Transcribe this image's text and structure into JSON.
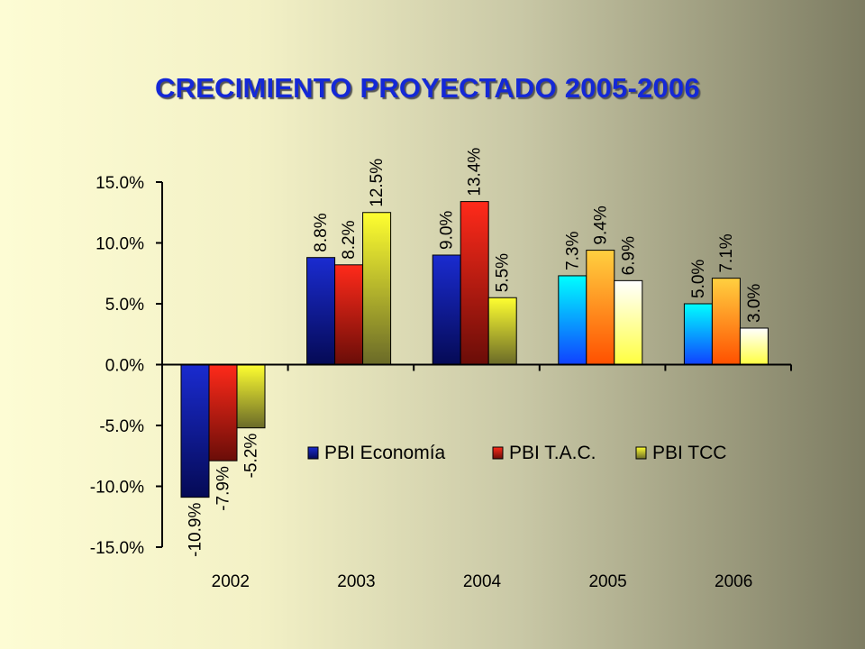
{
  "title": "CRECIMIENTO PROYECTADO 2005-2006",
  "chart_data": {
    "type": "bar",
    "categories": [
      "2002",
      "2003",
      "2004",
      "2005",
      "2006"
    ],
    "series": [
      {
        "name": "PBI Economía",
        "values": [
          -10.9,
          8.8,
          9.0,
          7.3,
          5.0
        ],
        "labels": [
          "-10.9%",
          "8.8%",
          "9.0%",
          "7.3%",
          "5.0%"
        ]
      },
      {
        "name": "PBI T.A.C.",
        "values": [
          -7.9,
          8.2,
          13.4,
          9.4,
          7.1
        ],
        "labels": [
          "-7.9%",
          "8.2%",
          "13.4%",
          "9.4%",
          "7.1%"
        ]
      },
      {
        "name": "PBI TCC",
        "values": [
          -5.2,
          12.5,
          5.5,
          6.9,
          3.0
        ],
        "labels": [
          "-5.2%",
          "12.5%",
          "5.5%",
          "6.9%",
          "3.0%"
        ]
      }
    ],
    "ylim": [
      -15,
      15
    ],
    "y_ticks": [
      15,
      10,
      5,
      0,
      -5,
      -10,
      -15
    ],
    "y_tick_labels": [
      "15.0%",
      "10.0%",
      "5.0%",
      "0.0%",
      "-5.0%",
      "-10.0%",
      "-15.0%"
    ],
    "xlabel": "",
    "ylabel": "",
    "grid": false,
    "legend_position": "center-right, below zero line",
    "colors": {
      "default": [
        [
          "#1a2bd0",
          "#050a55"
        ],
        [
          "#ff2a1a",
          "#6a0d08"
        ],
        [
          "#ffff30",
          "#6a6a28"
        ]
      ],
      "projected": [
        [
          "#00ffff",
          "#1040ff"
        ],
        [
          "#ffd040",
          "#ff5000"
        ],
        [
          "#ffffff",
          "#ffff40"
        ]
      ],
      "projected_categories": [
        "2005",
        "2006"
      ],
      "title": "#1428d6"
    }
  }
}
